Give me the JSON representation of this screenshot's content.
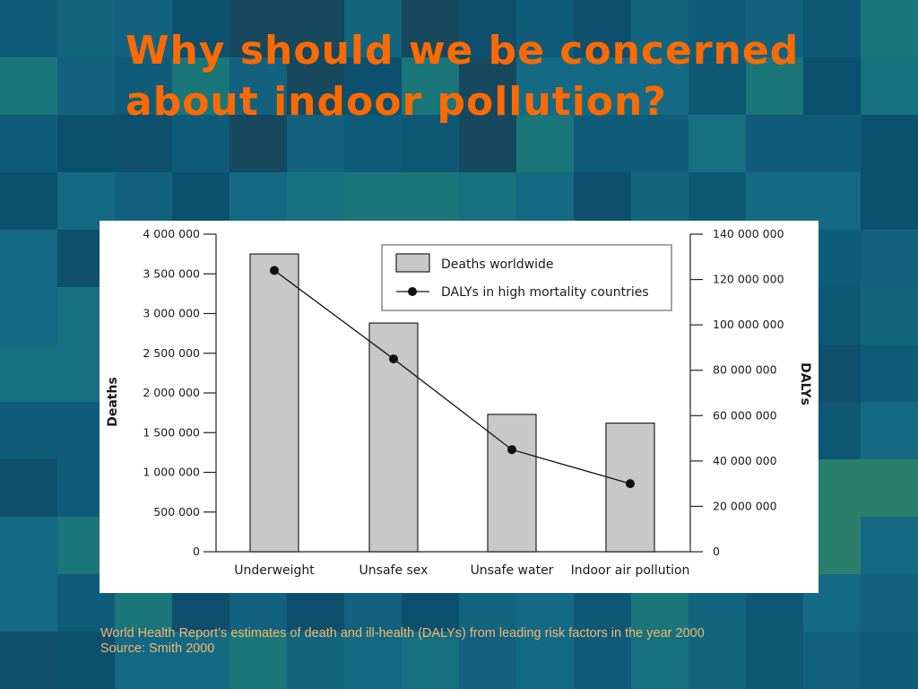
{
  "slide": {
    "title": "Why should we be concerned about indoor pollution?",
    "caption_line1": "World Health Report’s estimates of death and ill-health (DALYs) from leading risk factors in the year 2000",
    "caption_line2": "Source:  Smith 2000"
  },
  "colors": {
    "background": "#0f5a78",
    "title": "#ff6a00",
    "caption": "#f7b66a",
    "bar_fill": "#c8c8c8",
    "line": "#111111"
  },
  "chart_data": {
    "type": "bar",
    "categories": [
      "Underweight",
      "Unsafe sex",
      "Unsafe water",
      "Indoor air pollution"
    ],
    "series": [
      {
        "name": "Deaths worldwide",
        "type": "bar",
        "axis": "left",
        "values": [
          3750000,
          2880000,
          1730000,
          1620000
        ]
      },
      {
        "name": "DALYs in high mortality countries",
        "type": "line",
        "axis": "right",
        "values": [
          124000000,
          85000000,
          45000000,
          30000000
        ]
      }
    ],
    "ylabel": "Deaths",
    "y2label": "DALYs",
    "ylim": [
      0,
      4000000
    ],
    "y2lim": [
      0,
      140000000
    ],
    "y_ticks": [
      "0",
      "500 000",
      "1 000 000",
      "1 500 000",
      "2 000 000",
      "2 500 000",
      "3 000 000",
      "3 500 000",
      "4 000 000"
    ],
    "y2_ticks": [
      "0",
      "20 000 000",
      "40 000 000",
      "60 000 000",
      "80 000 000",
      "100 000 000",
      "120 000 000",
      "140 000 000"
    ],
    "legend_position": "top-right",
    "grid": false
  }
}
